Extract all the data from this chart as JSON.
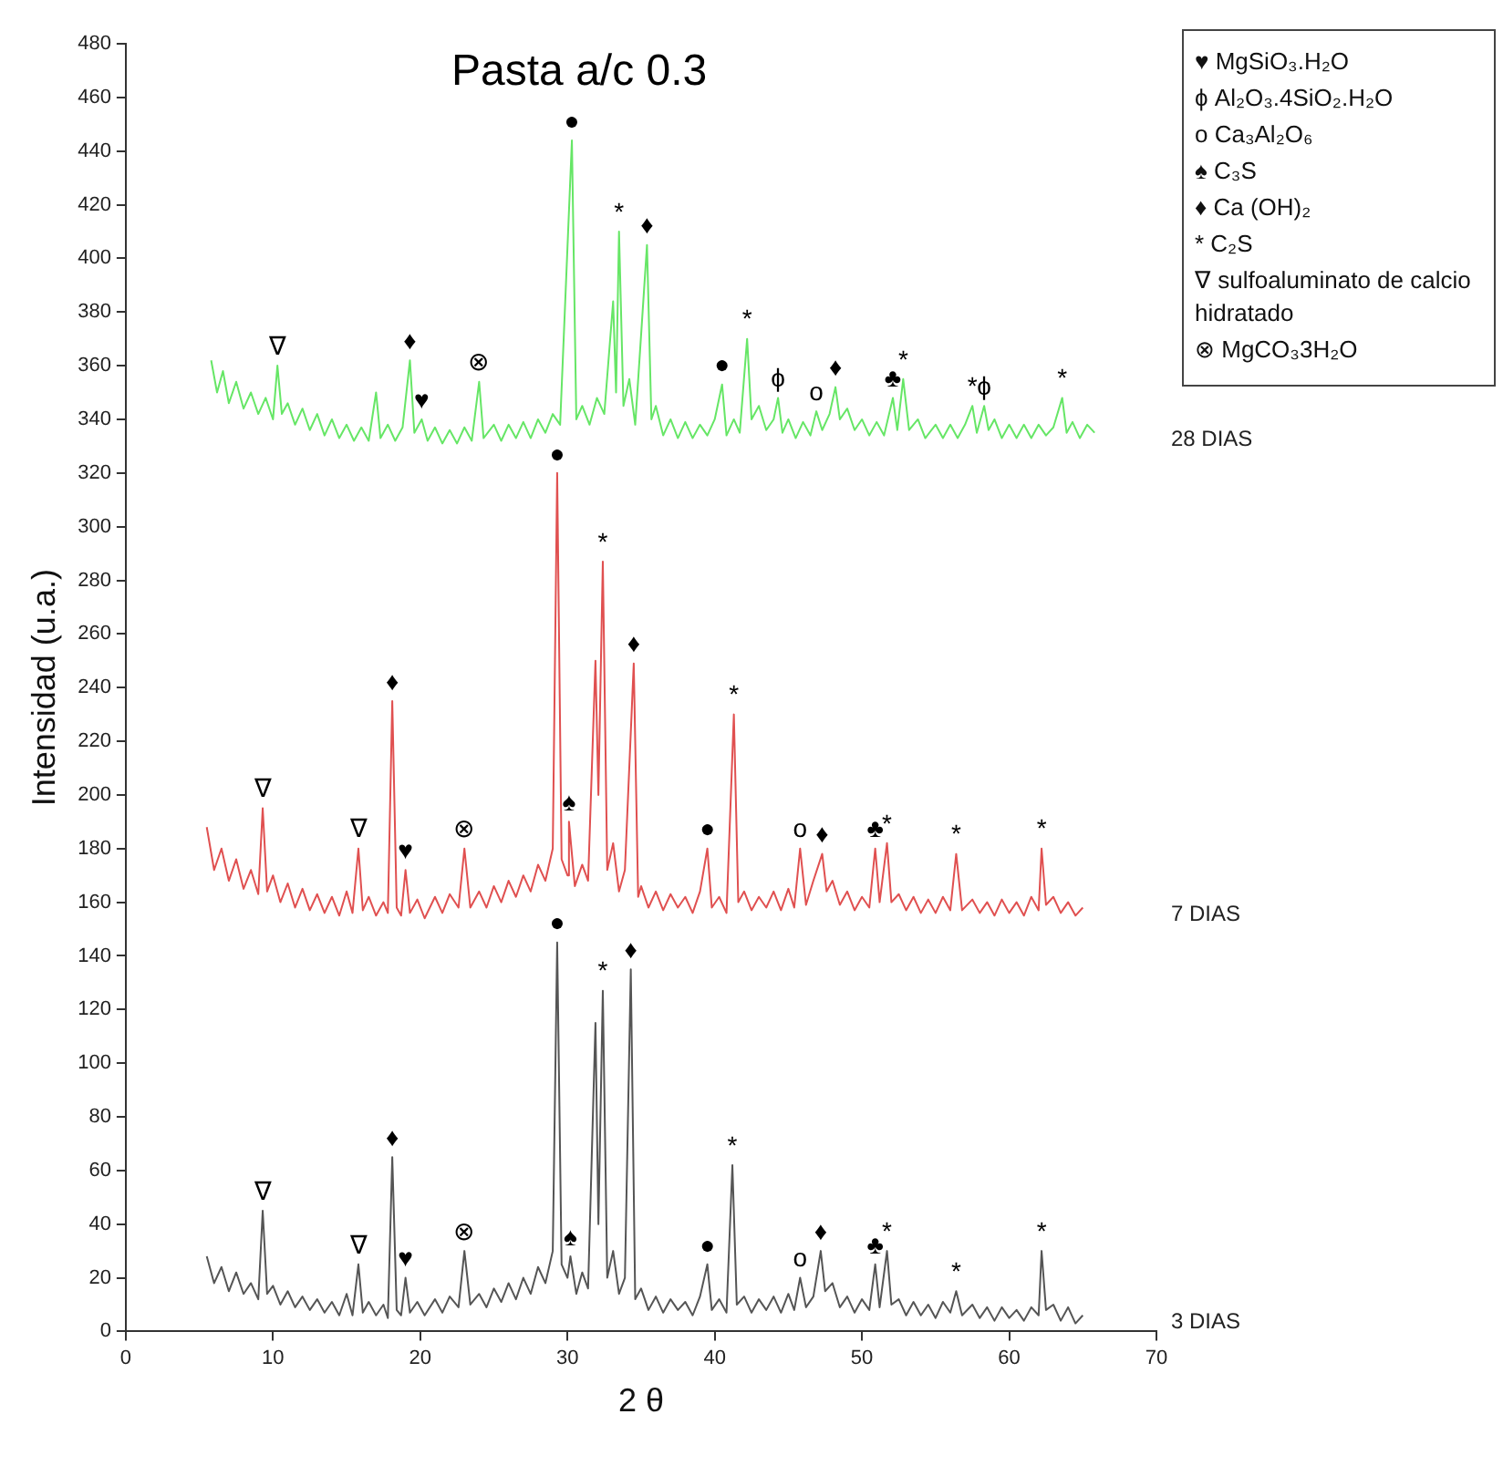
{
  "chart_data": {
    "type": "line",
    "title": "Pasta a/c 0.3",
    "xlabel": "2 θ",
    "ylabel": "Intensidad (u.a.)",
    "xlim": [
      0,
      70
    ],
    "xticks": [
      0,
      10,
      20,
      30,
      40,
      50,
      60,
      70
    ],
    "ylim": [
      0,
      480
    ],
    "yticks": [
      0,
      20,
      40,
      60,
      80,
      100,
      120,
      140,
      160,
      180,
      200,
      220,
      240,
      260,
      280,
      300,
      320,
      340,
      360,
      380,
      400,
      420,
      440,
      460,
      480
    ],
    "grid": false,
    "legend": false,
    "marker": "none",
    "line_style": "solid",
    "series": [
      {
        "name": "28 DIAS",
        "color": "#66e666",
        "x": [
          5.8,
          6.2,
          6.6,
          7,
          7.5,
          8,
          8.5,
          9,
          9.5,
          10,
          10.3,
          10.6,
          11,
          11.5,
          12,
          12.5,
          13,
          13.5,
          14,
          14.5,
          15,
          15.5,
          16,
          16.5,
          17,
          17.3,
          17.8,
          18.3,
          18.8,
          19.3,
          19.6,
          20.1,
          20.5,
          21,
          21.5,
          22,
          22.5,
          23,
          23.5,
          24,
          24.3,
          25,
          25.5,
          26,
          26.5,
          27,
          27.5,
          28,
          28.5,
          29,
          29.5,
          30.3,
          30.6,
          31,
          31.5,
          32,
          32.5,
          33.1,
          33.3,
          33.5,
          33.8,
          34.2,
          34.6,
          35.4,
          35.7,
          36,
          36.5,
          37,
          37.5,
          38,
          38.5,
          39,
          39.5,
          40,
          40.5,
          40.8,
          41.3,
          41.7,
          42.2,
          42.5,
          43,
          43.5,
          44,
          44.3,
          44.6,
          45,
          45.5,
          46,
          46.5,
          46.9,
          47.3,
          47.8,
          48.2,
          48.5,
          49,
          49.5,
          50,
          50.5,
          51,
          51.5,
          52.1,
          52.4,
          52.8,
          53.2,
          53.8,
          54.3,
          55,
          55.5,
          56,
          56.5,
          57,
          57.5,
          57.8,
          58.3,
          58.6,
          59,
          59.5,
          60,
          60.5,
          61,
          61.5,
          62,
          62.5,
          63,
          63.6,
          63.9,
          64.3,
          64.8,
          65.3,
          65.8
        ],
        "values": [
          362,
          350,
          358,
          346,
          354,
          344,
          350,
          342,
          348,
          340,
          360,
          342,
          346,
          338,
          344,
          336,
          342,
          334,
          340,
          333,
          338,
          332,
          337,
          332,
          350,
          333,
          338,
          332,
          337,
          362,
          335,
          340,
          332,
          337,
          331,
          336,
          331,
          337,
          332,
          354,
          333,
          338,
          332,
          338,
          333,
          339,
          333,
          340,
          335,
          342,
          338,
          444,
          340,
          345,
          338,
          348,
          342,
          384,
          350,
          410,
          345,
          355,
          338,
          405,
          340,
          345,
          334,
          340,
          333,
          339,
          333,
          338,
          334,
          340,
          353,
          334,
          340,
          335,
          370,
          340,
          345,
          336,
          340,
          348,
          335,
          340,
          333,
          339,
          334,
          343,
          336,
          342,
          352,
          340,
          344,
          336,
          340,
          334,
          339,
          334,
          348,
          336,
          355,
          336,
          340,
          333,
          338,
          333,
          338,
          333,
          338,
          345,
          335,
          345,
          336,
          340,
          333,
          338,
          333,
          338,
          333,
          338,
          334,
          337,
          348,
          335,
          339,
          333,
          338,
          335
        ]
      },
      {
        "name": "7 DIAS",
        "color": "#e05050",
        "x": [
          5.5,
          6,
          6.5,
          7,
          7.5,
          8,
          8.5,
          9,
          9.3,
          9.6,
          10,
          10.5,
          11,
          11.5,
          12,
          12.5,
          13,
          13.5,
          14,
          14.5,
          15,
          15.4,
          15.8,
          16.1,
          16.5,
          17,
          17.5,
          17.8,
          18.1,
          18.4,
          18.7,
          19,
          19.3,
          19.8,
          20.3,
          21,
          21.5,
          22,
          22.6,
          23,
          23.4,
          24,
          24.5,
          25,
          25.5,
          26,
          26.5,
          27,
          27.5,
          28,
          28.5,
          29,
          29.3,
          29.6,
          30,
          30.1,
          30.5,
          31,
          31.4,
          31.9,
          32.1,
          32.4,
          32.7,
          33.1,
          33.5,
          33.9,
          34.5,
          34.8,
          35,
          35.5,
          36,
          36.5,
          37,
          37.5,
          38,
          38.5,
          39,
          39.5,
          39.8,
          40.3,
          40.8,
          41.3,
          41.6,
          42,
          42.5,
          43,
          43.5,
          44,
          44.5,
          45,
          45.4,
          45.8,
          46.2,
          46.7,
          47.3,
          47.6,
          48,
          48.5,
          49,
          49.5,
          50,
          50.5,
          50.9,
          51.2,
          51.7,
          52,
          52.5,
          53,
          53.5,
          54,
          54.5,
          55,
          55.5,
          56,
          56.4,
          56.8,
          57.5,
          58,
          58.5,
          59,
          59.5,
          60,
          60.5,
          61,
          61.5,
          62,
          62.2,
          62.5,
          63,
          63.5,
          64,
          64.5,
          65
        ],
        "values": [
          188,
          172,
          180,
          168,
          176,
          165,
          172,
          163,
          195,
          164,
          170,
          160,
          167,
          158,
          165,
          157,
          163,
          156,
          162,
          155,
          164,
          156,
          180,
          157,
          162,
          155,
          160,
          156,
          235,
          158,
          155,
          172,
          156,
          161,
          154,
          162,
          156,
          163,
          158,
          180,
          158,
          164,
          158,
          166,
          160,
          168,
          162,
          170,
          164,
          174,
          168,
          180,
          320,
          176,
          170,
          190,
          166,
          174,
          168,
          250,
          200,
          287,
          172,
          182,
          164,
          172,
          249,
          162,
          166,
          158,
          164,
          157,
          163,
          158,
          162,
          156,
          164,
          180,
          158,
          162,
          156,
          230,
          160,
          164,
          157,
          162,
          158,
          164,
          157,
          165,
          158,
          180,
          159,
          168,
          178,
          164,
          168,
          159,
          164,
          157,
          162,
          158,
          180,
          160,
          182,
          160,
          163,
          157,
          162,
          156,
          161,
          156,
          162,
          157,
          178,
          157,
          161,
          156,
          160,
          155,
          161,
          156,
          160,
          155,
          162,
          157,
          180,
          159,
          162,
          156,
          160,
          155,
          158
        ]
      },
      {
        "name": "3 DIAS",
        "color": "#555555",
        "x": [
          5.5,
          6,
          6.5,
          7,
          7.5,
          8,
          8.5,
          9,
          9.3,
          9.6,
          10,
          10.5,
          11,
          11.5,
          12,
          12.5,
          13,
          13.5,
          14,
          14.5,
          15,
          15.4,
          15.8,
          16.1,
          16.5,
          17,
          17.5,
          17.8,
          18.1,
          18.4,
          18.7,
          19,
          19.3,
          19.8,
          20.3,
          21,
          21.5,
          22,
          22.6,
          23,
          23.4,
          24,
          24.5,
          25,
          25.5,
          26,
          26.5,
          27,
          27.5,
          28,
          28.5,
          29,
          29.3,
          29.6,
          30,
          30.2,
          30.6,
          31,
          31.4,
          31.9,
          32.1,
          32.4,
          32.7,
          33.1,
          33.5,
          33.9,
          34.3,
          34.6,
          35,
          35.5,
          36,
          36.5,
          37,
          37.5,
          38,
          38.5,
          39,
          39.5,
          39.8,
          40.3,
          40.8,
          41.2,
          41.5,
          42,
          42.5,
          43,
          43.5,
          44,
          44.5,
          45,
          45.4,
          45.8,
          46.2,
          46.7,
          47.2,
          47.5,
          48,
          48.5,
          49,
          49.5,
          50,
          50.5,
          50.9,
          51.2,
          51.7,
          52,
          52.5,
          53,
          53.5,
          54,
          54.5,
          55,
          55.5,
          56,
          56.4,
          56.8,
          57.5,
          58,
          58.5,
          59,
          59.5,
          60,
          60.5,
          61,
          61.5,
          62,
          62.2,
          62.5,
          63,
          63.5,
          64,
          64.5,
          65
        ],
        "values": [
          28,
          18,
          24,
          15,
          22,
          14,
          18,
          12,
          45,
          14,
          17,
          10,
          15,
          9,
          13,
          8,
          12,
          7,
          11,
          6,
          14,
          6,
          25,
          7,
          11,
          6,
          10,
          5,
          65,
          8,
          6,
          20,
          7,
          11,
          6,
          12,
          7,
          13,
          9,
          30,
          10,
          14,
          9,
          16,
          11,
          18,
          12,
          20,
          14,
          24,
          18,
          30,
          145,
          25,
          20,
          28,
          14,
          22,
          16,
          115,
          40,
          127,
          20,
          30,
          14,
          20,
          135,
          12,
          16,
          8,
          13,
          7,
          12,
          8,
          11,
          6,
          13,
          25,
          8,
          12,
          7,
          62,
          10,
          13,
          7,
          12,
          8,
          13,
          7,
          14,
          8,
          20,
          9,
          13,
          30,
          15,
          18,
          9,
          13,
          7,
          12,
          8,
          25,
          9,
          30,
          10,
          12,
          6,
          11,
          6,
          10,
          5,
          11,
          7,
          15,
          6,
          10,
          5,
          9,
          4,
          9,
          5,
          8,
          4,
          9,
          6,
          30,
          8,
          10,
          4,
          9,
          3,
          6
        ]
      }
    ],
    "annotations": [
      "♥ MgSiO₃.H₂O",
      "ϕ Al₂O₃.4SiO₂.H₂O",
      "o Ca₃Al₂O₆",
      "♠ C₃S",
      "♦ Ca (OH)₂",
      "* C₂S",
      "∇ sulfoaluminato de calcio hidratado",
      "⊗ MgCO₃3H₂O",
      {
        "text": "∇",
        "x": 10.3,
        "y": 360
      },
      {
        "text": "♦",
        "x": 19.3,
        "y": 362
      },
      {
        "text": "♥",
        "x": 20.1,
        "y": 340
      },
      {
        "text": "⊗",
        "x": 24,
        "y": 354
      },
      {
        "text": "●",
        "x": 30.3,
        "y": 444
      },
      {
        "text": "*",
        "x": 33.5,
        "y": 410
      },
      {
        "text": "♦",
        "x": 35.4,
        "y": 405
      },
      {
        "text": "●",
        "x": 40.5,
        "y": 353
      },
      {
        "text": "*",
        "x": 42.2,
        "y": 370
      },
      {
        "text": "ϕ",
        "x": 44.3,
        "y": 348
      },
      {
        "text": "o",
        "x": 46.9,
        "y": 343
      },
      {
        "text": "♦",
        "x": 48.2,
        "y": 352
      },
      {
        "text": "♣",
        "x": 52.1,
        "y": 348
      },
      {
        "text": "*",
        "x": 52.8,
        "y": 355
      },
      {
        "text": "*",
        "x": 57.5,
        "y": 345
      },
      {
        "text": "ϕ",
        "x": 58.3,
        "y": 345
      },
      {
        "text": "*",
        "x": 63.6,
        "y": 348
      },
      {
        "text": "∇",
        "x": 9.3,
        "y": 195
      },
      {
        "text": "∇",
        "x": 15.8,
        "y": 180
      },
      {
        "text": "♦",
        "x": 18.1,
        "y": 235
      },
      {
        "text": "♥",
        "x": 19,
        "y": 172
      },
      {
        "text": "⊗",
        "x": 23,
        "y": 180
      },
      {
        "text": "●",
        "x": 29.3,
        "y": 320
      },
      {
        "text": "♠",
        "x": 30.1,
        "y": 190
      },
      {
        "text": "*",
        "x": 32.4,
        "y": 287
      },
      {
        "text": "♦",
        "x": 34.5,
        "y": 249
      },
      {
        "text": "●",
        "x": 39.5,
        "y": 180
      },
      {
        "text": "*",
        "x": 41.3,
        "y": 230
      },
      {
        "text": "o",
        "x": 45.8,
        "y": 180
      },
      {
        "text": "♦",
        "x": 47.3,
        "y": 178
      },
      {
        "text": "♣",
        "x": 50.9,
        "y": 180
      },
      {
        "text": "*",
        "x": 51.7,
        "y": 182
      },
      {
        "text": "*",
        "x": 56.4,
        "y": 178
      },
      {
        "text": "*",
        "x": 62.2,
        "y": 180
      },
      {
        "text": "∇",
        "x": 9.3,
        "y": 45
      },
      {
        "text": "∇",
        "x": 15.8,
        "y": 25
      },
      {
        "text": "♦",
        "x": 18.1,
        "y": 65
      },
      {
        "text": "♥",
        "x": 19,
        "y": 20
      },
      {
        "text": "⊗",
        "x": 23,
        "y": 30
      },
      {
        "text": "●",
        "x": 29.3,
        "y": 145
      },
      {
        "text": "♠",
        "x": 30.2,
        "y": 28
      },
      {
        "text": "*",
        "x": 32.4,
        "y": 127
      },
      {
        "text": "♦",
        "x": 34.3,
        "y": 135
      },
      {
        "text": "●",
        "x": 39.5,
        "y": 25
      },
      {
        "text": "*",
        "x": 41.2,
        "y": 62
      },
      {
        "text": "o",
        "x": 45.8,
        "y": 20
      },
      {
        "text": "♦",
        "x": 47.2,
        "y": 30
      },
      {
        "text": "♣",
        "x": 50.9,
        "y": 25
      },
      {
        "text": "*",
        "x": 51.7,
        "y": 30
      },
      {
        "text": "*",
        "x": 56.4,
        "y": 15
      },
      {
        "text": "*",
        "x": 62.2,
        "y": 30
      }
    ]
  }
}
